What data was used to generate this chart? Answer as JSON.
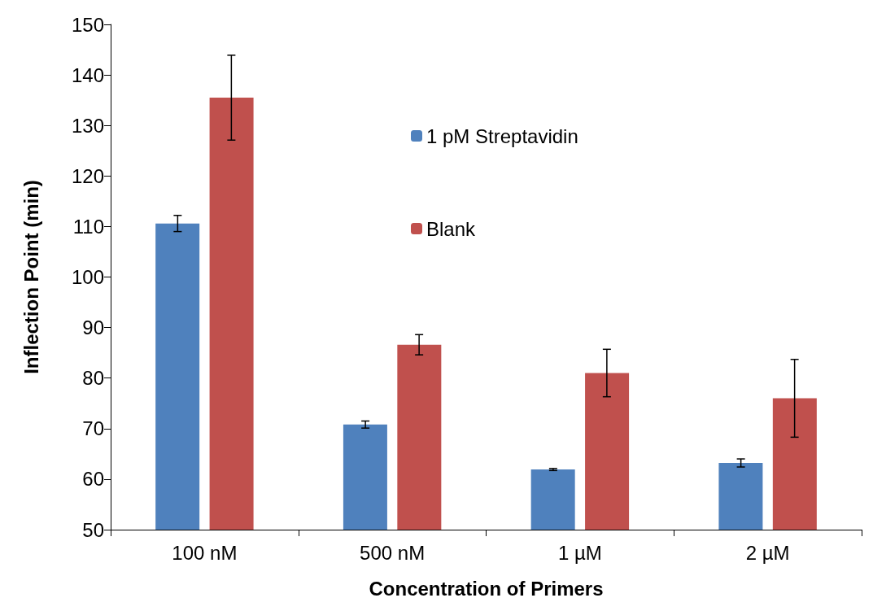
{
  "chart_data": {
    "type": "bar",
    "xlabel": "Concentration of Primers",
    "ylabel": "Inflection Point (min)",
    "categories": [
      "100 nM",
      "500 nM",
      "1 µM",
      "2 µM"
    ],
    "series": [
      {
        "name": "1 pM Streptavidin",
        "color": "#4f81bd",
        "values": [
          110.6,
          70.8,
          61.9,
          63.2
        ],
        "errors": [
          1.6,
          0.7,
          0.2,
          0.8
        ]
      },
      {
        "name": "Blank",
        "color": "#c0504d",
        "values": [
          135.5,
          86.6,
          81.0,
          76.0
        ],
        "errors": [
          8.4,
          2.0,
          4.7,
          7.7
        ]
      }
    ],
    "ylim": [
      50,
      150
    ],
    "yticks": [
      50,
      60,
      70,
      80,
      90,
      100,
      110,
      120,
      130,
      140,
      150
    ],
    "grid": false,
    "legend": "top"
  }
}
